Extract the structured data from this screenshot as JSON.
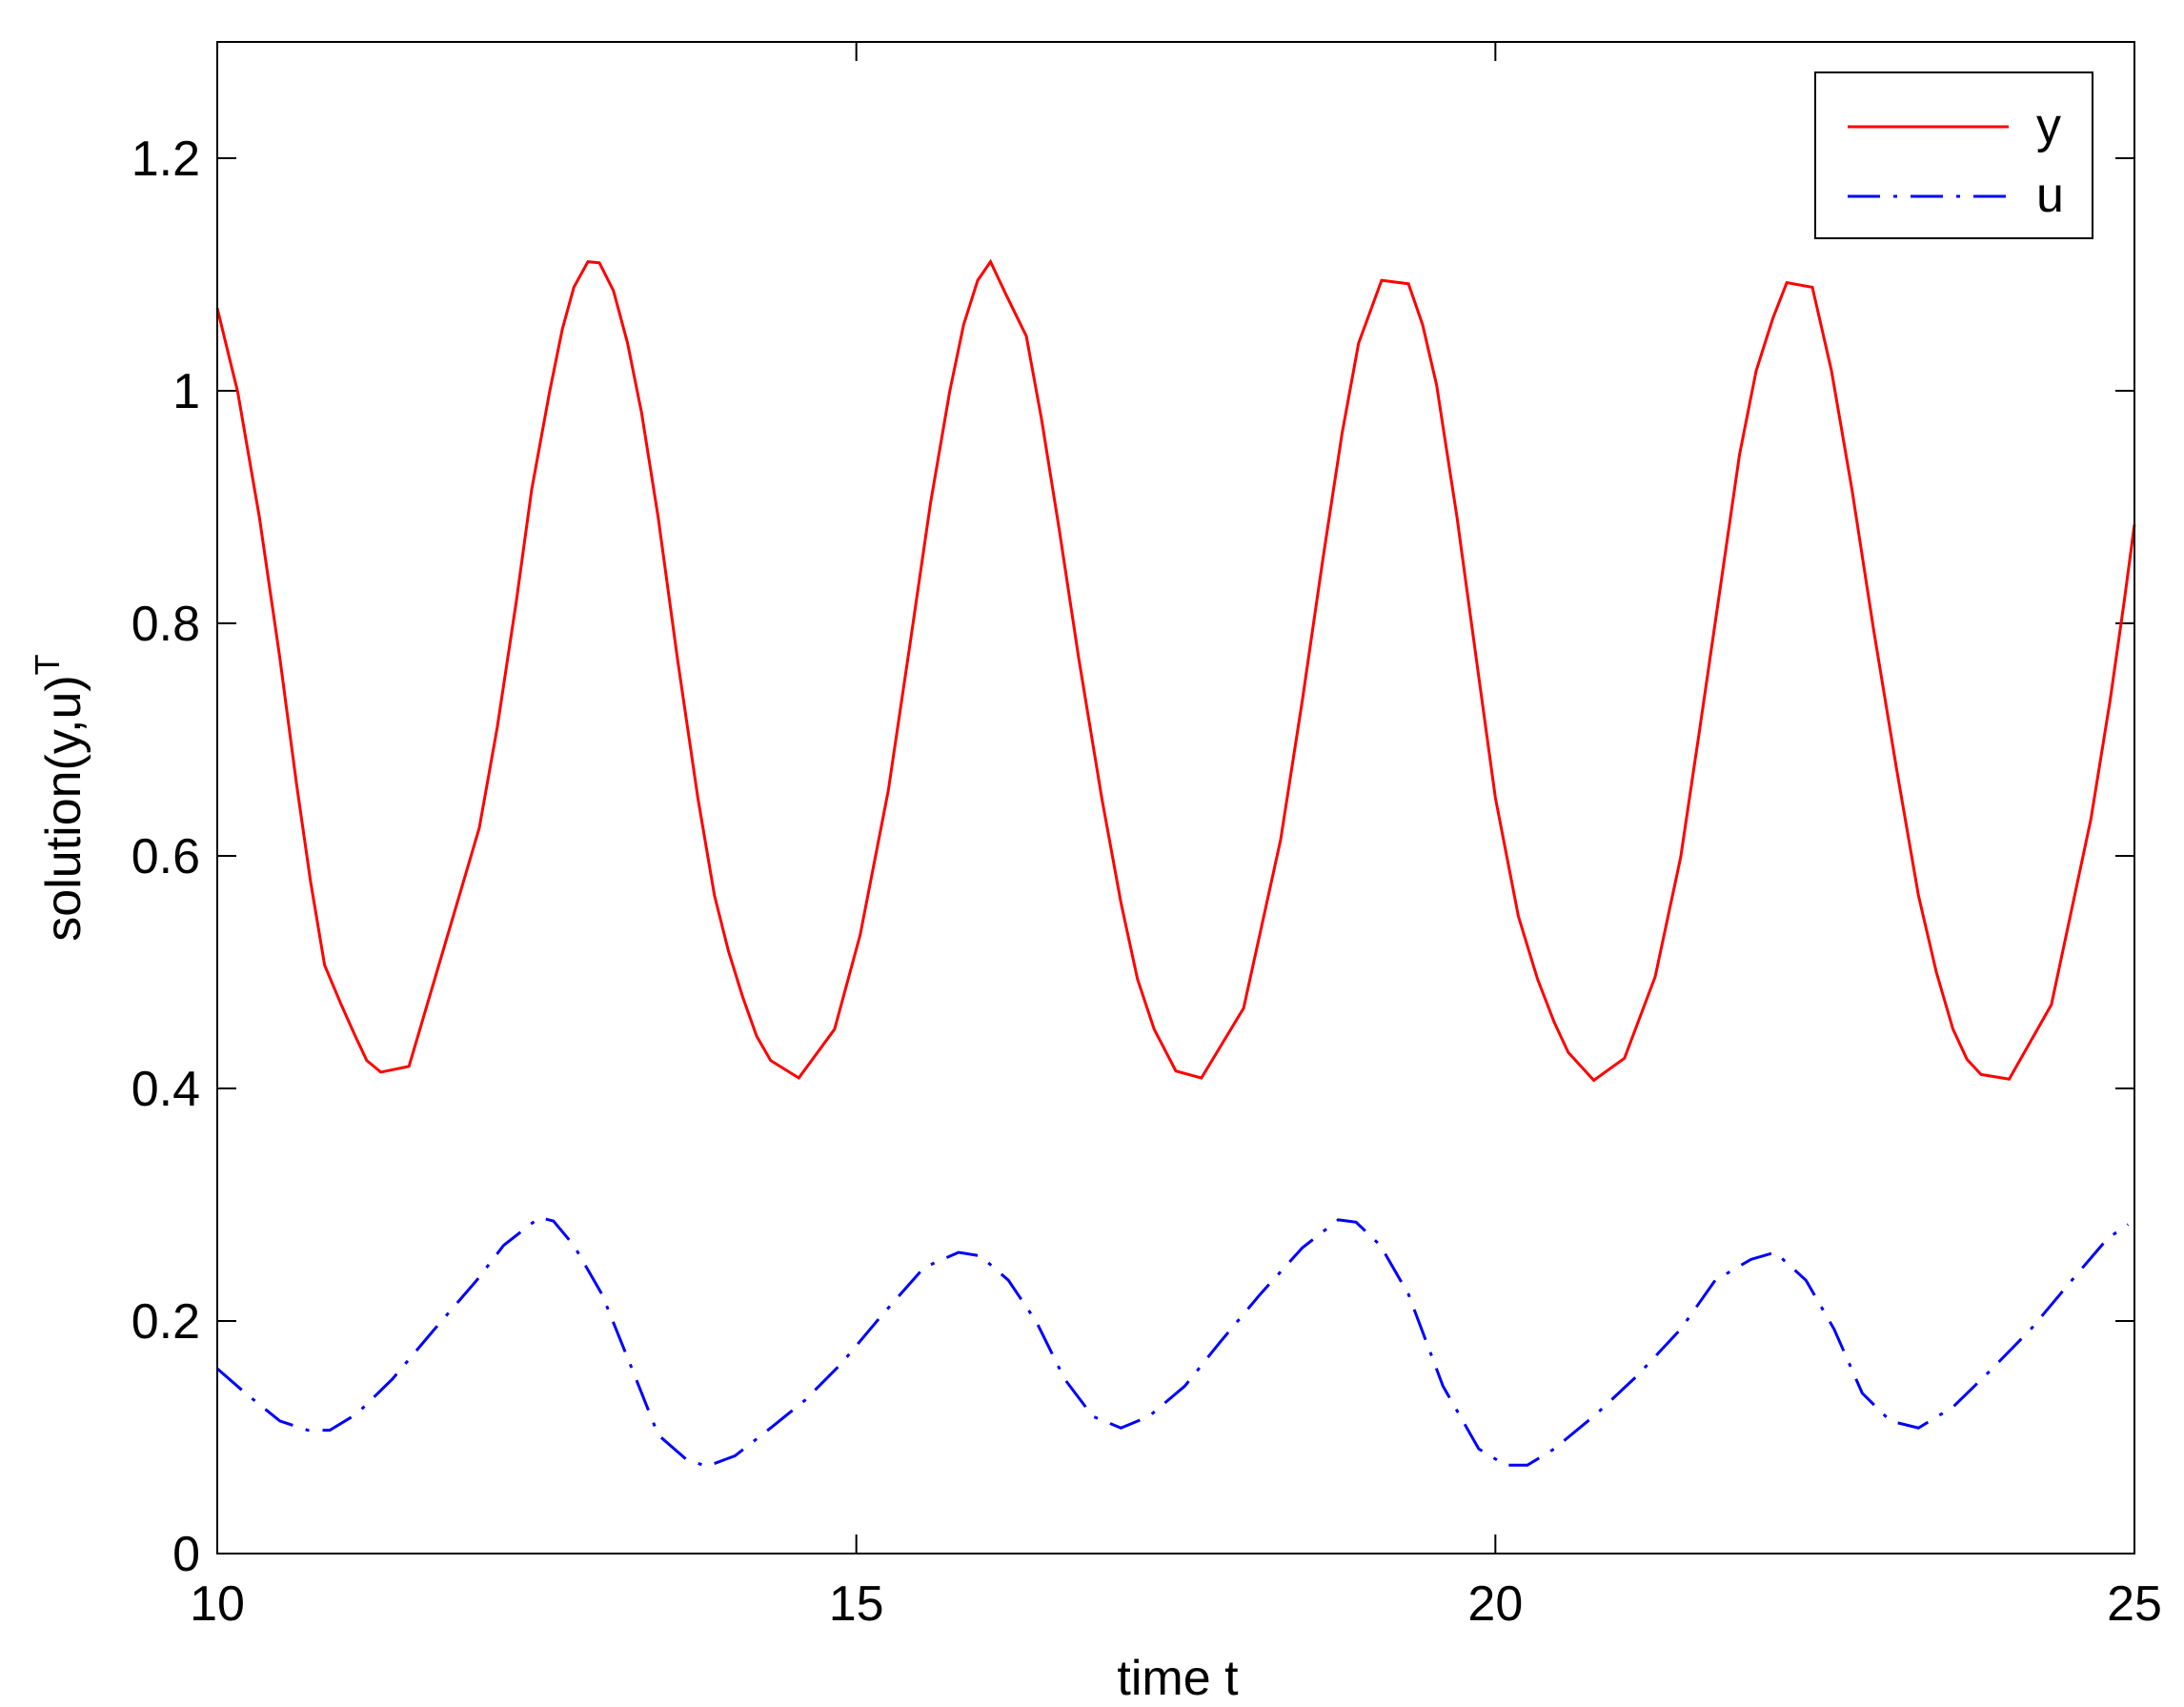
{
  "chart_data": {
    "type": "line",
    "xlabel": "time t",
    "ylabel": "solution(y,u)",
    "ylabel_superscript": "T",
    "xlim": [
      10,
      25
    ],
    "xticks": [
      10,
      15,
      20,
      25
    ],
    "ylim": [
      0,
      1.3
    ],
    "yticks": [
      0,
      0.2,
      0.4,
      0.6,
      0.8,
      1,
      1.2
    ],
    "legend": "upper right",
    "box": true,
    "series": [
      {
        "name": "y",
        "color": "#ff0000",
        "style": "solid",
        "x": [
          10,
          10.16,
          10.33,
          10.49,
          10.62,
          10.73,
          10.84,
          10.97,
          11.08,
          11.17,
          11.28,
          11.5,
          12.05,
          12.19,
          12.34,
          12.46,
          12.6,
          12.7,
          12.79,
          12.9,
          12.99,
          13.1,
          13.21,
          13.32,
          13.45,
          13.6,
          13.76,
          13.89,
          14,
          14.11,
          14.22,
          14.33,
          14.55,
          14.83,
          15.03,
          15.25,
          15.42,
          15.58,
          15.73,
          15.84,
          15.95,
          16.05,
          16.17,
          16.33,
          16.45,
          16.59,
          16.74,
          16.92,
          17.07,
          17.2,
          17.33,
          17.5,
          17.7,
          18.03,
          18.32,
          18.49,
          18.65,
          18.8,
          18.93,
          19.11,
          19.32,
          19.43,
          19.54,
          19.7,
          19.85,
          20,
          20.18,
          20.33,
          20.46,
          20.57,
          20.77,
          21.01,
          21.25,
          21.45,
          21.6,
          21.76,
          21.91,
          22.04,
          22.17,
          22.28,
          22.48,
          22.63,
          22.79,
          22.96,
          23.14,
          23.31,
          23.45,
          23.58,
          23.69,
          23.8,
          24.02,
          24.35,
          24.66,
          24.81,
          24.92,
          25
        ],
        "values": [
          1.071,
          0.999,
          0.891,
          0.77,
          0.662,
          0.578,
          0.506,
          0.472,
          0.445,
          0.424,
          0.414,
          0.419,
          0.624,
          0.71,
          0.819,
          0.915,
          0.999,
          1.053,
          1.089,
          1.111,
          1.11,
          1.086,
          1.041,
          0.981,
          0.891,
          0.77,
          0.65,
          0.566,
          0.518,
          0.479,
          0.445,
          0.424,
          0.409,
          0.451,
          0.532,
          0.656,
          0.782,
          0.903,
          0.999,
          1.057,
          1.095,
          1.111,
          1.083,
          1.047,
          0.975,
          0.879,
          0.77,
          0.65,
          0.56,
          0.494,
          0.451,
          0.415,
          0.409,
          0.469,
          0.614,
          0.734,
          0.855,
          0.963,
          1.041,
          1.095,
          1.092,
          1.057,
          1.005,
          0.891,
          0.77,
          0.65,
          0.548,
          0.494,
          0.457,
          0.431,
          0.407,
          0.426,
          0.496,
          0.599,
          0.71,
          0.831,
          0.945,
          1.017,
          1.062,
          1.093,
          1.089,
          1.017,
          0.915,
          0.794,
          0.674,
          0.566,
          0.5,
          0.451,
          0.425,
          0.412,
          0.408,
          0.472,
          0.632,
          0.734,
          0.819,
          0.885
        ]
      },
      {
        "name": "u",
        "color": "#0000ff",
        "style": "dashdot",
        "x": [
          10,
          10.22,
          10.49,
          10.71,
          10.88,
          11.09,
          11.37,
          11.7,
          12.03,
          12.24,
          12.52,
          12.63,
          12.79,
          13.01,
          13.23,
          13.45,
          13.67,
          13.83,
          14.05,
          14.33,
          14.6,
          14.88,
          15.2,
          15.53,
          15.8,
          15.97,
          16.19,
          16.41,
          16.63,
          16.85,
          17.07,
          17.29,
          17.57,
          17.84,
          18.16,
          18.49,
          18.77,
          18.91,
          19.1,
          19.32,
          19.59,
          19.87,
          20.08,
          20.25,
          20.46,
          20.79,
          21.11,
          21.45,
          21.72,
          22,
          22.19,
          22.43,
          22.65,
          22.87,
          23.09,
          23.31,
          23.58,
          23.86,
          24.19,
          24.51,
          24.79,
          24.95
        ],
        "values": [
          0.159,
          0.138,
          0.114,
          0.106,
          0.106,
          0.12,
          0.15,
          0.193,
          0.235,
          0.265,
          0.289,
          0.286,
          0.265,
          0.223,
          0.163,
          0.102,
          0.081,
          0.075,
          0.084,
          0.108,
          0.132,
          0.163,
          0.205,
          0.246,
          0.259,
          0.256,
          0.235,
          0.199,
          0.15,
          0.118,
          0.108,
          0.118,
          0.144,
          0.181,
          0.223,
          0.263,
          0.287,
          0.285,
          0.265,
          0.223,
          0.144,
          0.09,
          0.076,
          0.076,
          0.09,
          0.12,
          0.153,
          0.193,
          0.235,
          0.253,
          0.259,
          0.235,
          0.193,
          0.138,
          0.114,
          0.108,
          0.126,
          0.156,
          0.193,
          0.235,
          0.271,
          0.283
        ]
      }
    ]
  }
}
